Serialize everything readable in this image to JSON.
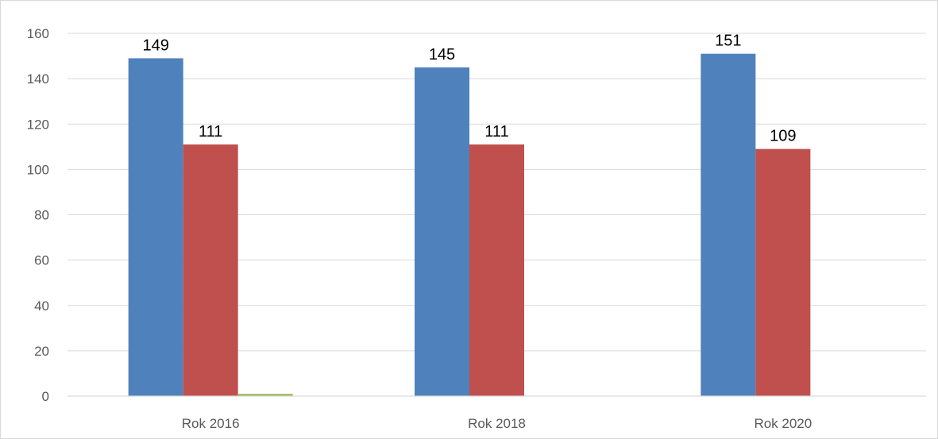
{
  "chart_data": {
    "type": "bar",
    "categories": [
      "Rok 2016",
      "Rok 2018",
      "Rok 2020"
    ],
    "series": [
      {
        "color": "#4f81bd",
        "values": [
          149,
          145,
          151
        ],
        "data_labels": [
          "149",
          "145",
          "151"
        ]
      },
      {
        "color": "#c0504d",
        "values": [
          111,
          111,
          109
        ],
        "data_labels": [
          "111",
          "111",
          "109"
        ]
      },
      {
        "color": "#9bbb59",
        "values": [
          1,
          0,
          0
        ],
        "data_labels": [
          "",
          "",
          ""
        ]
      }
    ],
    "title": "",
    "xlabel": "",
    "ylabel": "",
    "ylim": [
      0,
      160
    ],
    "yticks": [
      "0",
      "20",
      "40",
      "60",
      "80",
      "100",
      "120",
      "140",
      "160"
    ],
    "grid": true,
    "legend": "none",
    "colors": {
      "grid": "#d9d9d9",
      "axis": "#d9d9d9",
      "frame": "#d9d9d9",
      "tick_text": "#595959",
      "label_text": "#000000"
    }
  }
}
